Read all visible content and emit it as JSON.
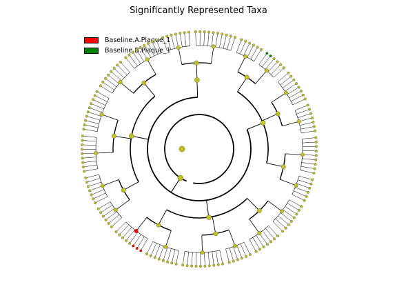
{
  "title": "Significantly Represented Taxa",
  "legend": [
    {
      "label": "Baseline.A.Plaque_1",
      "color": "#ff0000"
    },
    {
      "label": "Baseline.B.Plaque_1",
      "color": "#008000"
    }
  ],
  "colors": {
    "node": "#c0c020",
    "edge": "#000000",
    "group_a": "#ff0000",
    "group_b": "#008000"
  },
  "chart_data": {
    "type": "cladogram",
    "layout": "circular",
    "levels": 6,
    "clades": [
      {
        "leaves": 6
      },
      {
        "leaves": 6,
        "mark": "b"
      },
      {
        "leaves": 8
      },
      {
        "leaves": 7
      },
      {
        "leaves": 9
      },
      {
        "leaves": 6
      },
      {
        "leaves": 8
      },
      {
        "leaves": 7
      },
      {
        "leaves": 6
      },
      {
        "leaves": 10
      },
      {
        "leaves": 8
      },
      {
        "leaves": 8,
        "mark": "a"
      },
      {
        "leaves": 6
      },
      {
        "leaves": 7
      },
      {
        "leaves": 9
      },
      {
        "leaves": 10
      },
      {
        "leaves": 8
      },
      {
        "leaves": 9
      },
      {
        "leaves": 7
      },
      {
        "leaves": 10
      }
    ],
    "marked": {
      "a": 3,
      "b": 2
    }
  }
}
